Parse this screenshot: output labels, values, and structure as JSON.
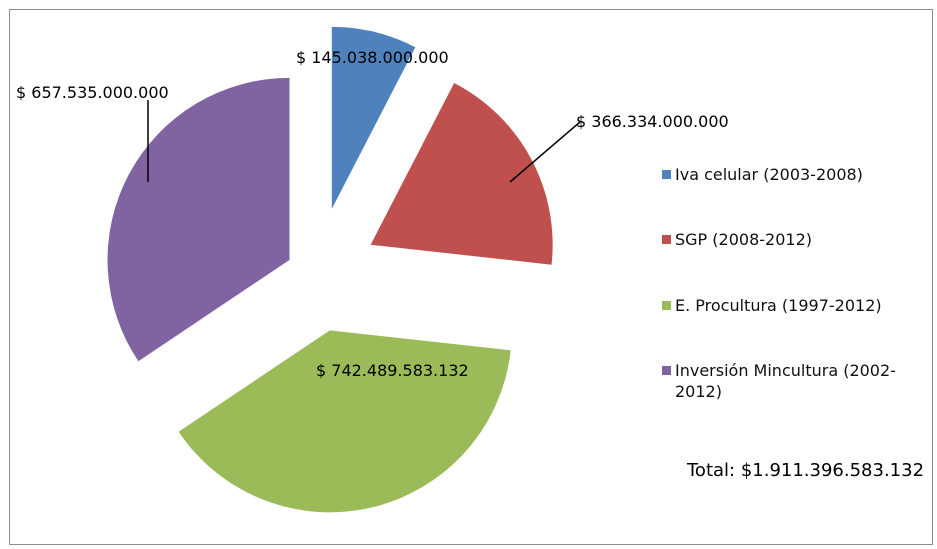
{
  "chart_data": {
    "type": "pie",
    "exploded": true,
    "slices": [
      {
        "name": "Iva celular (2003-2008)",
        "value": 145038000000,
        "label": "$ 145.038.000.000",
        "color": "#4F81BD"
      },
      {
        "name": "SGP (2008-2012)",
        "value": 366334000000,
        "label": "$ 366.334.000.000",
        "color": "#C0504D"
      },
      {
        "name": "E. Procultura (1997-2012)",
        "value": 742489583132,
        "label": "$ 742.489.583.132",
        "color": "#9BBB59"
      },
      {
        "name": "Inversión Mincultura (2002-2012)",
        "value": 657535000000,
        "label": "$ 657.535.000.000",
        "color": "#8064A2"
      }
    ],
    "legend": {
      "placement": "right",
      "items": [
        "Iva celular (2003-2008)",
        "SGP (2008-2012)",
        "E. Procultura (1997-2012)",
        "Inversión Mincultura (2002-2012)"
      ]
    },
    "total_text": "Total: $1.911.396.583.132"
  }
}
